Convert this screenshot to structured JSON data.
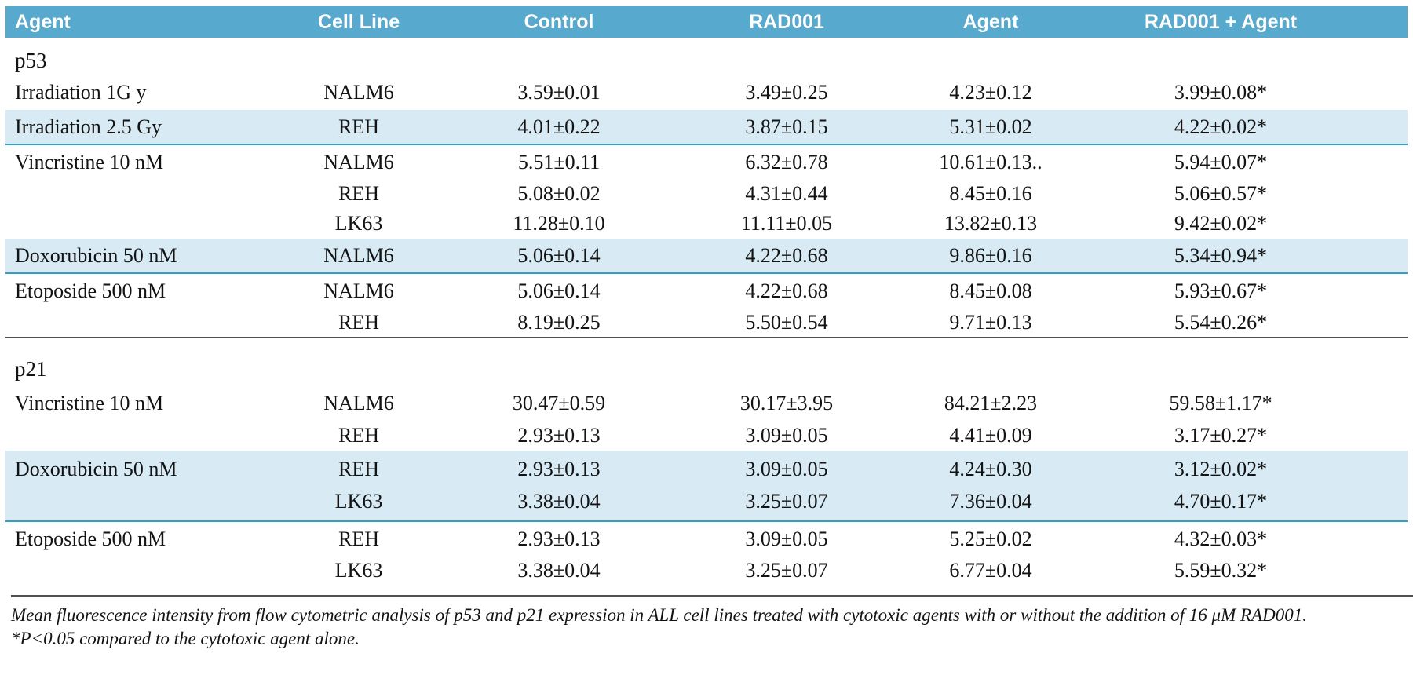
{
  "colors": {
    "header_bg": "#57A9CD",
    "highlight_bg": "#D8EAF4",
    "teal_line": "#2FA0C6",
    "dark_line": "#4F4F4F",
    "text": "#131313"
  },
  "table": {
    "columns": [
      "Agent",
      "Cell Line",
      "Control",
      "RAD001",
      "Agent",
      "RAD001 + Agent"
    ],
    "sections": [
      {
        "label": "p53",
        "groups": [
          {
            "agent": "Irradiation 1G y",
            "highlight": false,
            "rows": [
              [
                "NALM6",
                "3.59±0.01",
                "3.49±0.25",
                "4.23±0.12",
                "3.99±0.08*"
              ]
            ]
          },
          {
            "agent": "Irradiation 2.5 Gy",
            "highlight": true,
            "rows": [
              [
                "REH",
                "4.01±0.22",
                "3.87±0.15",
                "5.31±0.02",
                "4.22±0.02*"
              ]
            ]
          },
          {
            "agent": "Vincristine 10 nM",
            "highlight": false,
            "rows": [
              [
                "NALM6",
                "5.51±0.11",
                "6.32±0.78",
                "10.61±0.13..",
                "5.94±0.07*"
              ],
              [
                "REH",
                "5.08±0.02",
                "4.31±0.44",
                "8.45±0.16",
                "5.06±0.57*"
              ],
              [
                "LK63",
                "11.28±0.10",
                "11.11±0.05",
                "13.82±0.13",
                "9.42±0.02*"
              ]
            ]
          },
          {
            "agent": "Doxorubicin 50 nM",
            "highlight": true,
            "rows": [
              [
                "NALM6",
                "5.06±0.14",
                "4.22±0.68",
                "9.86±0.16",
                "5.34±0.94*"
              ]
            ]
          },
          {
            "agent": "Etoposide 500 nM",
            "highlight": false,
            "rows": [
              [
                "NALM6",
                "5.06±0.14",
                "4.22±0.68",
                "8.45±0.08",
                "5.93±0.67*"
              ],
              [
                "REH",
                "8.19±0.25",
                "5.50±0.54",
                "9.71±0.13",
                "5.54±0.26*"
              ]
            ]
          }
        ]
      },
      {
        "label": "p21",
        "groups": [
          {
            "agent": "Vincristine 10 nM",
            "highlight": false,
            "rows": [
              [
                "NALM6",
                "30.47±0.59",
                "30.17±3.95",
                "84.21±2.23",
                "59.58±1.17*"
              ],
              [
                "REH",
                "2.93±0.13",
                "3.09±0.05",
                "4.41±0.09",
                "3.17±0.27*"
              ]
            ]
          },
          {
            "agent": "Doxorubicin 50 nM",
            "highlight": true,
            "rows": [
              [
                "REH",
                "2.93±0.13",
                "3.09±0.05",
                "4.24±0.30",
                "3.12±0.02*"
              ],
              [
                "LK63",
                "3.38±0.04",
                "3.25±0.07",
                "7.36±0.04",
                "4.70±0.17*"
              ]
            ]
          },
          {
            "agent": "Etoposide 500 nM",
            "highlight": false,
            "rows": [
              [
                "REH",
                "2.93±0.13",
                "3.09±0.05",
                "5.25±0.02",
                "4.32±0.03*"
              ],
              [
                "LK63",
                "3.38±0.04",
                "3.25±0.07",
                "6.77±0.04",
                "5.59±0.32*"
              ]
            ]
          }
        ]
      }
    ]
  },
  "footnote": {
    "line1": "Mean fluorescence intensity from flow cytometric analysis of p53 and p21 expression in ALL cell lines treated with cytotoxic agents with or without the addition of 16 μM RAD001.",
    "line2": "*P<0.05 compared to the cytotoxic agent alone."
  }
}
